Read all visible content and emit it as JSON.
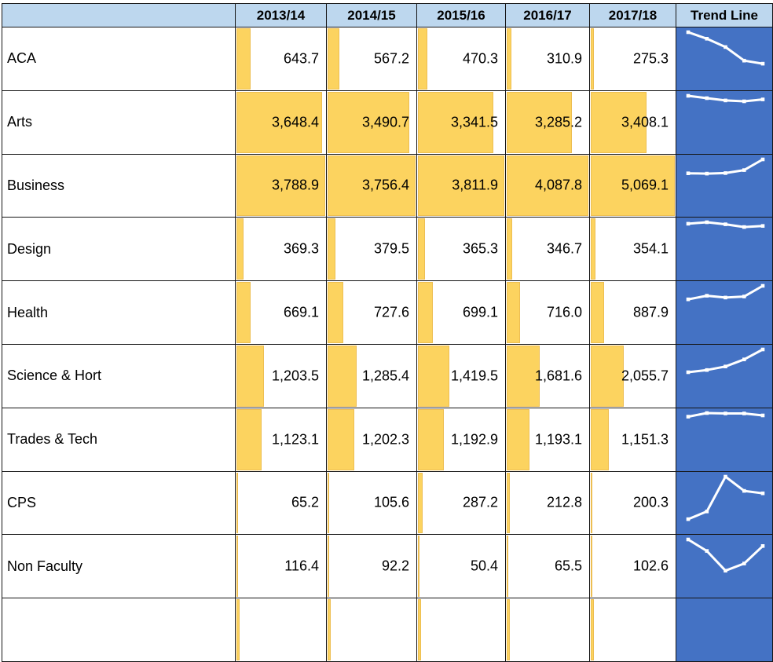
{
  "table": {
    "corner_label": "",
    "year_headers": [
      "2013/14",
      "2014/15",
      "2015/16",
      "2016/17",
      "2017/18"
    ],
    "trend_header": "Trend Line",
    "rows": [
      {
        "label": "ACA",
        "values": [
          "643.7",
          "567.2",
          "470.3",
          "310.9",
          "275.3"
        ]
      },
      {
        "label": "Arts",
        "values": [
          "3,648.4",
          "3,490.7",
          "3,341.5",
          "3,285.2",
          "3,408.1"
        ]
      },
      {
        "label": "Business",
        "values": [
          "3,788.9",
          "3,756.4",
          "3,811.9",
          "4,087.8",
          "5,069.1"
        ]
      },
      {
        "label": "Design",
        "values": [
          "369.3",
          "379.5",
          "365.3",
          "346.7",
          "354.1"
        ]
      },
      {
        "label": "Health",
        "values": [
          "669.1",
          "727.6",
          "699.1",
          "716.0",
          "887.9"
        ]
      },
      {
        "label": "Science & Hort",
        "values": [
          "1,203.5",
          "1,285.4",
          "1,419.5",
          "1,681.6",
          "2,055.7"
        ]
      },
      {
        "label": "Trades & Tech",
        "values": [
          "1,123.1",
          "1,202.3",
          "1,192.9",
          "1,193.1",
          "1,151.3"
        ]
      },
      {
        "label": "CPS",
        "values": [
          "65.2",
          "105.6",
          "287.2",
          "212.8",
          "200.3"
        ]
      },
      {
        "label": "Non Faculty",
        "values": [
          "116.4",
          "92.2",
          "50.4",
          "65.5",
          "102.6"
        ]
      }
    ]
  },
  "chart_data": {
    "type": "table",
    "title": "",
    "categories": [
      "2013/14",
      "2014/15",
      "2015/16",
      "2016/17",
      "2017/18"
    ],
    "series": [
      {
        "name": "ACA",
        "values": [
          643.7,
          567.2,
          470.3,
          310.9,
          275.3
        ]
      },
      {
        "name": "Arts",
        "values": [
          3648.4,
          3490.7,
          3341.5,
          3285.2,
          3408.1
        ]
      },
      {
        "name": "Business",
        "values": [
          3788.9,
          3756.4,
          3811.9,
          4087.8,
          5069.1
        ]
      },
      {
        "name": "Design",
        "values": [
          369.3,
          379.5,
          365.3,
          346.7,
          354.1
        ]
      },
      {
        "name": "Health",
        "values": [
          669.1,
          727.6,
          699.1,
          716.0,
          887.9
        ]
      },
      {
        "name": "Science & Hort",
        "values": [
          1203.5,
          1285.4,
          1419.5,
          1681.6,
          2055.7
        ]
      },
      {
        "name": "Trades & Tech",
        "values": [
          1123.1,
          1202.3,
          1192.9,
          1193.1,
          1151.3
        ]
      },
      {
        "name": "CPS",
        "values": [
          65.2,
          105.6,
          287.2,
          212.8,
          200.3
        ]
      },
      {
        "name": "Non Faculty",
        "values": [
          116.4,
          92.2,
          50.4,
          65.5,
          102.6
        ]
      }
    ],
    "visual_encoding": {
      "data_bars": "gold bar in each cell, length = value / column max",
      "sparklines": "white line per row in blue cell, vertical axis 0 to row max",
      "trend_column_label": "Trend Line"
    }
  },
  "colors": {
    "header_bg": "#BDD7EE",
    "bar_fill": "#FCD35F",
    "bar_border": "#EDBE52",
    "trend_bg": "#4472C4",
    "sparkline": "#FFFFFF",
    "grid": "#151515"
  }
}
